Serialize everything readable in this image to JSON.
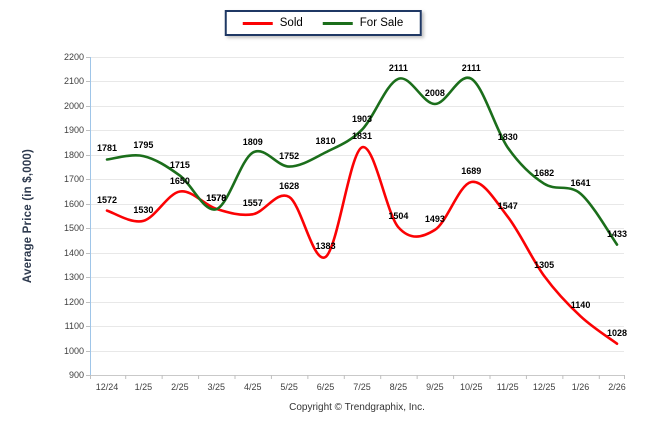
{
  "legend": {
    "items": [
      {
        "label": "Sold",
        "color": "#fb0204"
      },
      {
        "label": "For Sale",
        "color": "#1b6e1b"
      }
    ]
  },
  "y_axis_title": "Average Price (in $,000)",
  "footer_copyright": "Copyright © Trendgraphix, Inc.",
  "colors": {
    "sold_line": "#fb0204",
    "forsale_line": "#1b6e1b",
    "legend_border": "#1f3864",
    "gridline": "#e8e8e8",
    "axis_line": "#c9c9c9",
    "y_axis_line": "#9fc5e8",
    "tick_mark": "#bfbfbf",
    "tick_text": "#3f3f3f",
    "data_label_text": "#000000"
  },
  "chart_data": {
    "type": "line",
    "title": "",
    "categories": [
      "12/24",
      "1/25",
      "2/25",
      "3/25",
      "4/25",
      "5/25",
      "6/25",
      "7/25",
      "8/25",
      "9/25",
      "10/25",
      "11/25",
      "12/25",
      "1/26",
      "2/26"
    ],
    "series": [
      {
        "name": "Sold",
        "color": "#fb0204",
        "values": [
          1572,
          1530,
          1650,
          1579,
          1557,
          1628,
          1383,
          1831,
          1504,
          1493,
          1689,
          1547,
          1305,
          1140,
          1028
        ]
      },
      {
        "name": "For Sale",
        "color": "#1b6e1b",
        "values": [
          1781,
          1795,
          1715,
          1578,
          1809,
          1752,
          1810,
          1903,
          2111,
          2008,
          2111,
          1830,
          1682,
          1641,
          1433
        ]
      }
    ],
    "xlabel": "",
    "ylabel": "Average Price (in $,000)",
    "ylim": [
      900,
      2200
    ],
    "ytick_step": 100,
    "grid": true,
    "smooth": true,
    "data_labels": true,
    "legend_position": "top-center",
    "footnote": "Copyright © Trendgraphix, Inc."
  }
}
